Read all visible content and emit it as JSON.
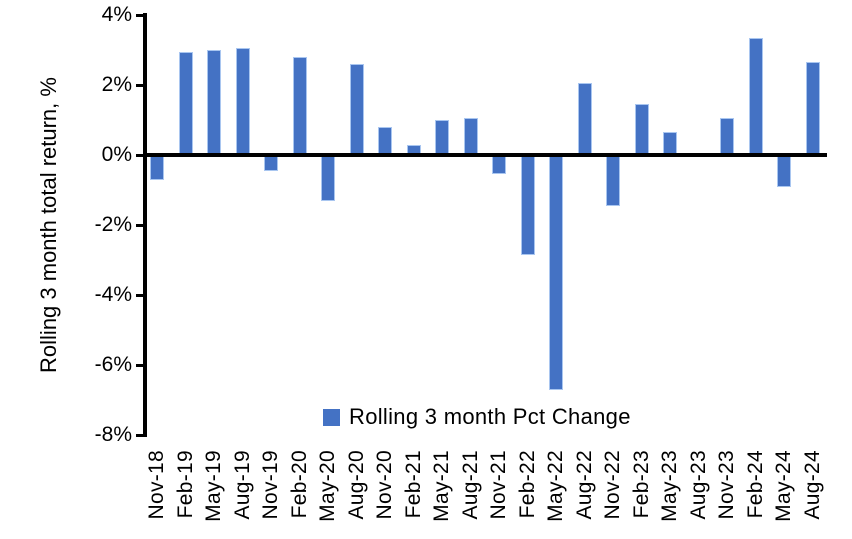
{
  "chart_data": {
    "type": "bar",
    "title": "",
    "ylabel": "Rolling 3 month total return, %",
    "xlabel": "",
    "ylim": [
      -8,
      4
    ],
    "yticks": [
      4,
      2,
      0,
      -2,
      -4,
      -6,
      -8
    ],
    "ytick_labels": [
      "4%",
      "2%",
      "0%",
      "-2%",
      "-4%",
      "-6%",
      "-8%"
    ],
    "grid": false,
    "legend_position": "bottom-center-inside",
    "legend": {
      "label": "Rolling 3 month Pct Change"
    },
    "bar_color": "#4472C4",
    "bar_edge_color": "#A9C6F0",
    "axis_color": "#000000",
    "categories": [
      "Nov-18",
      "Feb-19",
      "May-19",
      "Aug-19",
      "Nov-19",
      "Feb-20",
      "May-20",
      "Aug-20",
      "Nov-20",
      "Feb-21",
      "May-21",
      "Aug-21",
      "Nov-21",
      "Feb-22",
      "May-22",
      "Aug-22",
      "Nov-22",
      "Feb-23",
      "May-23",
      "Aug-23",
      "Nov-23",
      "Feb-24",
      "May-24",
      "Aug-24"
    ],
    "values": [
      -0.7,
      2.95,
      3.0,
      3.05,
      -0.45,
      2.8,
      -1.3,
      2.6,
      0.8,
      0.3,
      1.0,
      1.05,
      -0.55,
      -2.85,
      -6.7,
      2.05,
      -1.45,
      1.45,
      0.65,
      0,
      1.05,
      3.35,
      -0.9,
      2.65
    ]
  }
}
